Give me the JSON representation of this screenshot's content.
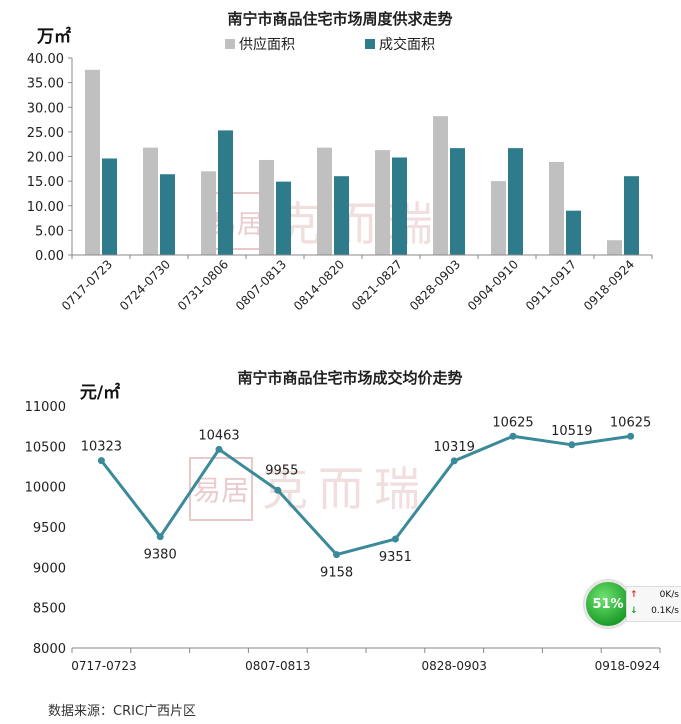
{
  "chart_data": [
    {
      "type": "bar",
      "title": "南宁市商品住宅市场周度供求走势",
      "unit": "万㎡",
      "categories": [
        "0717-0723",
        "0724-0730",
        "0731-0806",
        "0807-0813",
        "0814-0820",
        "0821-0827",
        "0828-0903",
        "0904-0910",
        "0911-0917",
        "0918-0924"
      ],
      "series": [
        {
          "name": "供应面积",
          "color": "#c0c0c0",
          "values": [
            37.6,
            21.8,
            17.0,
            19.3,
            21.8,
            21.3,
            28.2,
            15.0,
            18.9,
            3.0
          ]
        },
        {
          "name": "成交面积",
          "color": "#2e7b8c",
          "values": [
            19.6,
            16.4,
            25.3,
            14.9,
            16.0,
            19.8,
            21.7,
            21.7,
            9.0,
            16.0
          ]
        }
      ],
      "yticks": [
        "0.00",
        "5.00",
        "10.00",
        "15.00",
        "20.00",
        "25.00",
        "30.00",
        "35.00",
        "40.00"
      ],
      "ylim": [
        0,
        40
      ],
      "legend": "top",
      "grid": false
    },
    {
      "type": "line",
      "title": "南宁市商品住宅市场成交均价走势",
      "unit": "元/㎡",
      "categories": [
        "0717-0723",
        "0724-0730",
        "0731-0806",
        "0807-0813",
        "0814-0820",
        "0821-0827",
        "0828-0903",
        "0904-0910",
        "0911-0917",
        "0918-0924"
      ],
      "xtick_labels": [
        "0717-0723",
        "0807-0813",
        "0828-0903",
        "0918-0924"
      ],
      "series": [
        {
          "color": "#3a8a99",
          "values": [
            10323,
            9380,
            10463,
            9955,
            9158,
            9351,
            10319,
            10625,
            10519,
            10625
          ]
        }
      ],
      "yticks": [
        "8000",
        "8500",
        "9000",
        "9500",
        "10000",
        "10500",
        "11000"
      ],
      "ylim": [
        8000,
        11000
      ],
      "grid": false
    }
  ],
  "watermark": {
    "logo_glyph": "易居",
    "text": "克而瑞"
  },
  "source": "数据来源：CRIC广西片区",
  "net_widget": {
    "percent": "51%",
    "up": "0K/s",
    "down": "0.1K/s"
  }
}
